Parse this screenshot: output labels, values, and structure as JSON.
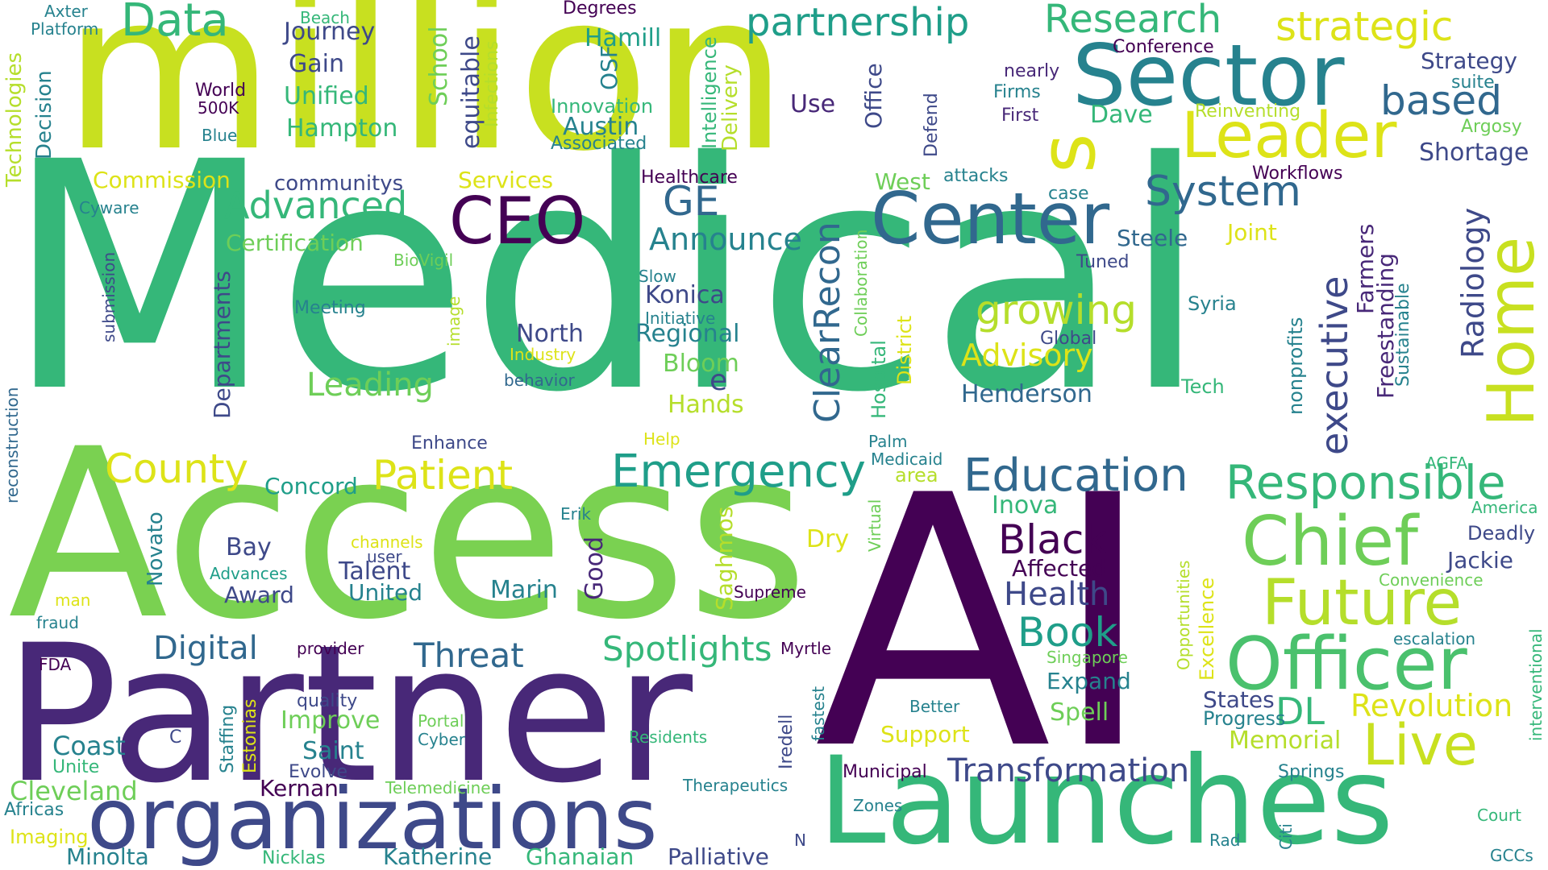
{
  "palette": {
    "background": "#ffffff",
    "colors": [
      "#440154",
      "#482878",
      "#3e4989",
      "#31688e",
      "#26828e",
      "#1f9e89",
      "#35b779",
      "#6ece58",
      "#b5de2b",
      "#fde725"
    ]
  },
  "words": [
    {
      "text": "Medical",
      "color": "#35b779"
    },
    {
      "text": "Access",
      "color": "#7ad151"
    },
    {
      "text": "AI",
      "color": "#440154"
    },
    {
      "text": "million",
      "color": "#c8e020"
    },
    {
      "text": "Partner",
      "color": "#482878"
    },
    {
      "text": "Launches",
      "color": "#35b779"
    },
    {
      "text": "organizations",
      "color": "#3e4989"
    },
    {
      "text": "Sector",
      "color": "#26828e"
    },
    {
      "text": "Officer",
      "color": "#4ac16d"
    },
    {
      "text": "Chief",
      "color": "#6ece58"
    },
    {
      "text": "Future",
      "color": "#b5de2b"
    },
    {
      "text": "Center",
      "color": "#31688e"
    },
    {
      "text": "CEO",
      "color": "#440154"
    },
    {
      "text": "Data",
      "color": "#35b779"
    },
    {
      "text": "Leader",
      "color": "#dde318"
    },
    {
      "text": "Home",
      "color": "#c8e020"
    },
    {
      "text": "Live",
      "color": "#c8e020"
    },
    {
      "text": "Responsible",
      "color": "#35b779"
    },
    {
      "text": "Emergency",
      "color": "#1f9e89"
    },
    {
      "text": "Education",
      "color": "#31688e"
    },
    {
      "text": "s",
      "color": "#dde318"
    },
    {
      "text": "partnership",
      "color": "#1f9e89"
    },
    {
      "text": "Research",
      "color": "#35b779"
    },
    {
      "text": "strategic",
      "color": "#dde318"
    },
    {
      "text": "based",
      "color": "#31688e"
    },
    {
      "text": "executive",
      "color": "#3e4989"
    },
    {
      "text": "ClearRecon",
      "color": "#31688e"
    },
    {
      "text": "System",
      "color": "#31688e"
    },
    {
      "text": "Advanced",
      "color": "#35b779"
    },
    {
      "text": "GE",
      "color": "#31688e"
    },
    {
      "text": "growing",
      "color": "#b5de2b"
    },
    {
      "text": "County",
      "color": "#dde318"
    },
    {
      "text": "Patient",
      "color": "#dde318"
    },
    {
      "text": "Black",
      "color": "#440154"
    },
    {
      "text": "Book",
      "color": "#1f9e89"
    },
    {
      "text": "Health",
      "color": "#3e4989"
    },
    {
      "text": "Threat",
      "color": "#31688e"
    },
    {
      "text": "Spotlights",
      "color": "#35b779"
    },
    {
      "text": "Digital",
      "color": "#31688e"
    },
    {
      "text": "Transformation",
      "color": "#3e4989"
    },
    {
      "text": "Revolution",
      "color": "#dde318"
    },
    {
      "text": "DL",
      "color": "#35b779"
    },
    {
      "text": "Radiology",
      "color": "#3e4989"
    },
    {
      "text": "Announce",
      "color": "#26828e"
    },
    {
      "text": "Advisory",
      "color": "#dde318"
    },
    {
      "text": "Leading",
      "color": "#6ece58"
    },
    {
      "text": "Unified",
      "color": "#35b779"
    },
    {
      "text": "Hampton",
      "color": "#35b779"
    },
    {
      "text": "Journey",
      "color": "#3e4989"
    },
    {
      "text": "Gain",
      "color": "#3e4989"
    },
    {
      "text": "Hamill",
      "color": "#1f9e89"
    },
    {
      "text": "Austin",
      "color": "#26828e"
    },
    {
      "text": "Use",
      "color": "#482878"
    },
    {
      "text": "Dave",
      "color": "#35b779"
    },
    {
      "text": "Strategy",
      "color": "#3e4989"
    },
    {
      "text": "Shortage",
      "color": "#3e4989"
    },
    {
      "text": "Steele",
      "color": "#31688e"
    },
    {
      "text": "Joint",
      "color": "#dde318"
    },
    {
      "text": "Henderson",
      "color": "#31688e"
    },
    {
      "text": "Konica",
      "color": "#3e4989"
    },
    {
      "text": "North",
      "color": "#3e4989"
    },
    {
      "text": "Regional",
      "color": "#26828e"
    },
    {
      "text": "Bloom",
      "color": "#6ece58"
    },
    {
      "text": "Hands",
      "color": "#b5de2b"
    },
    {
      "text": "e",
      "color": "#3e4989"
    },
    {
      "text": "Certification",
      "color": "#6ece58"
    },
    {
      "text": "Commission",
      "color": "#dde318"
    },
    {
      "text": "communitys",
      "color": "#3e4989"
    },
    {
      "text": "Services",
      "color": "#dde318"
    },
    {
      "text": "Departments",
      "color": "#3e4989"
    },
    {
      "text": "Concord",
      "color": "#1f9e89"
    },
    {
      "text": "Bay",
      "color": "#3e4989"
    },
    {
      "text": "Talent",
      "color": "#3e4989"
    },
    {
      "text": "United",
      "color": "#26828e"
    },
    {
      "text": "Award",
      "color": "#3e4989"
    },
    {
      "text": "Marin",
      "color": "#26828e"
    },
    {
      "text": "Good",
      "color": "#482878"
    },
    {
      "text": "Saghmos",
      "color": "#b5de2b"
    },
    {
      "text": "Dry",
      "color": "#dde318"
    },
    {
      "text": "Inova",
      "color": "#35b779"
    },
    {
      "text": "Affected",
      "color": "#440154"
    },
    {
      "text": "Expand",
      "color": "#26828e"
    },
    {
      "text": "Spell",
      "color": "#6ece58"
    },
    {
      "text": "States",
      "color": "#3e4989"
    },
    {
      "text": "Progress",
      "color": "#26828e"
    },
    {
      "text": "Memorial",
      "color": "#b5de2b"
    },
    {
      "text": "Jackie",
      "color": "#3e4989"
    },
    {
      "text": "Deadly",
      "color": "#3e4989"
    },
    {
      "text": "Freestanding",
      "color": "#482878"
    },
    {
      "text": "Farmers",
      "color": "#482878"
    },
    {
      "text": "nonprofits",
      "color": "#26828e"
    },
    {
      "text": "Sustainable",
      "color": "#26828e"
    },
    {
      "text": "Syria",
      "color": "#26828e"
    },
    {
      "text": "Tech",
      "color": "#35b779"
    },
    {
      "text": "Global",
      "color": "#3e4989"
    },
    {
      "text": "Tuned",
      "color": "#3e4989"
    },
    {
      "text": "Workflows",
      "color": "#440154"
    },
    {
      "text": "case",
      "color": "#26828e"
    },
    {
      "text": "attacks",
      "color": "#26828e"
    },
    {
      "text": "West",
      "color": "#6ece58"
    },
    {
      "text": "Healthcare",
      "color": "#440154"
    },
    {
      "text": "Conference",
      "color": "#440154"
    },
    {
      "text": "nearly",
      "color": "#482878"
    },
    {
      "text": "Firms",
      "color": "#26828e"
    },
    {
      "text": "First",
      "color": "#482878"
    },
    {
      "text": "Reinventing",
      "color": "#b5de2b"
    },
    {
      "text": "suite",
      "color": "#26828e"
    },
    {
      "text": "Argosy",
      "color": "#6ece58"
    },
    {
      "text": "Defend",
      "color": "#3e4989"
    },
    {
      "text": "Office",
      "color": "#3e4989"
    },
    {
      "text": "Intelligence",
      "color": "#35b779"
    },
    {
      "text": "Delivery",
      "color": "#b5de2b"
    },
    {
      "text": "Innovation",
      "color": "#35b779"
    },
    {
      "text": "Associated",
      "color": "#26828e"
    },
    {
      "text": "OSF",
      "color": "#26828e"
    },
    {
      "text": "Infections",
      "color": "#b5de2b"
    },
    {
      "text": "equitable",
      "color": "#3e4989"
    },
    {
      "text": "School",
      "color": "#6ece58"
    },
    {
      "text": "Degrees",
      "color": "#440154"
    },
    {
      "text": "Beach",
      "color": "#35b779"
    },
    {
      "text": "Axter",
      "color": "#26828e"
    },
    {
      "text": "Platform",
      "color": "#26828e"
    },
    {
      "text": "World",
      "color": "#440154"
    },
    {
      "text": "500K",
      "color": "#440154"
    },
    {
      "text": "Blue",
      "color": "#26828e"
    },
    {
      "text": "Decision",
      "color": "#26828e"
    },
    {
      "text": "Technologies",
      "color": "#b5de2b"
    },
    {
      "text": "Cyware",
      "color": "#26828e"
    },
    {
      "text": "BioVigil",
      "color": "#6ece58"
    },
    {
      "text": "submission",
      "color": "#3e4989"
    },
    {
      "text": "reconstruction",
      "color": "#31688e"
    },
    {
      "text": "Meeting",
      "color": "#26828e"
    },
    {
      "text": "image",
      "color": "#b5de2b"
    },
    {
      "text": "Industry",
      "color": "#dde318"
    },
    {
      "text": "behavior",
      "color": "#31688e"
    },
    {
      "text": "Slow",
      "color": "#26828e"
    },
    {
      "text": "Initiative",
      "color": "#26828e"
    },
    {
      "text": "Collaboration",
      "color": "#6ece58"
    },
    {
      "text": "Hospital",
      "color": "#35b779"
    },
    {
      "text": "District",
      "color": "#dde318"
    },
    {
      "text": "Enhance",
      "color": "#3e4989"
    },
    {
      "text": "Help",
      "color": "#dde318"
    },
    {
      "text": "Palm",
      "color": "#26828e"
    },
    {
      "text": "Medicaid",
      "color": "#26828e"
    },
    {
      "text": "area",
      "color": "#b5de2b"
    },
    {
      "text": "Virtual",
      "color": "#6ece58"
    },
    {
      "text": "Erik",
      "color": "#26828e"
    },
    {
      "text": "channels",
      "color": "#dde318"
    },
    {
      "text": "user",
      "color": "#3e4989"
    },
    {
      "text": "Advances",
      "color": "#1f9e89"
    },
    {
      "text": "Novato",
      "color": "#26828e"
    },
    {
      "text": "man",
      "color": "#dde318"
    },
    {
      "text": "fraud",
      "color": "#26828e"
    },
    {
      "text": "FDA",
      "color": "#440154"
    },
    {
      "text": "provider",
      "color": "#440154"
    },
    {
      "text": "Myrtle",
      "color": "#440154"
    },
    {
      "text": "Supreme",
      "color": "#440154"
    },
    {
      "text": "Opportunities",
      "color": "#b5de2b"
    },
    {
      "text": "Excellence",
      "color": "#dde318"
    },
    {
      "text": "Singapore",
      "color": "#6ece58"
    },
    {
      "text": "Convenience",
      "color": "#6ece58"
    },
    {
      "text": "America",
      "color": "#35b779"
    },
    {
      "text": "AGFA",
      "color": "#35b779"
    },
    {
      "text": "escalation",
      "color": "#26828e"
    },
    {
      "text": "interventional",
      "color": "#35b779"
    },
    {
      "text": "Court",
      "color": "#35b779"
    },
    {
      "text": "Springs",
      "color": "#26828e"
    },
    {
      "text": "GCCs",
      "color": "#26828e"
    },
    {
      "text": "Citi",
      "color": "#26828e"
    },
    {
      "text": "Rad",
      "color": "#26828e"
    },
    {
      "text": "Better",
      "color": "#26828e"
    },
    {
      "text": "Support",
      "color": "#dde318"
    },
    {
      "text": "Zones",
      "color": "#26828e"
    },
    {
      "text": "Municipal",
      "color": "#440154"
    },
    {
      "text": "Therapeutics",
      "color": "#26828e"
    },
    {
      "text": "fastest",
      "color": "#26828e"
    },
    {
      "text": "Iredell",
      "color": "#3e4989"
    },
    {
      "text": "N",
      "color": "#3e4989"
    },
    {
      "text": "Residents",
      "color": "#35b779"
    },
    {
      "text": "Portal",
      "color": "#6ece58"
    },
    {
      "text": "Cyber",
      "color": "#26828e"
    },
    {
      "text": "Telemedicine",
      "color": "#6ece58"
    },
    {
      "text": "Palliative",
      "color": "#3e4989"
    },
    {
      "text": "Ghanaian",
      "color": "#35b779"
    },
    {
      "text": "Katherine",
      "color": "#26828e"
    },
    {
      "text": "Nicklas",
      "color": "#35b779"
    },
    {
      "text": "Minolta",
      "color": "#26828e"
    },
    {
      "text": "Kernan",
      "color": "#440154"
    },
    {
      "text": "Evolve",
      "color": "#3e4989"
    },
    {
      "text": "Saint",
      "color": "#26828e"
    },
    {
      "text": "Improve",
      "color": "#6ece58"
    },
    {
      "text": "quality",
      "color": "#3e4989"
    },
    {
      "text": "Staffing",
      "color": "#26828e"
    },
    {
      "text": "Estonias",
      "color": "#dde318"
    },
    {
      "text": "C",
      "color": "#3e4989"
    },
    {
      "text": "Coast",
      "color": "#26828e"
    },
    {
      "text": "Unite",
      "color": "#35b779"
    },
    {
      "text": "Cleveland",
      "color": "#6ece58"
    },
    {
      "text": "Africas",
      "color": "#26828e"
    },
    {
      "text": "Imaging",
      "color": "#dde318"
    }
  ]
}
